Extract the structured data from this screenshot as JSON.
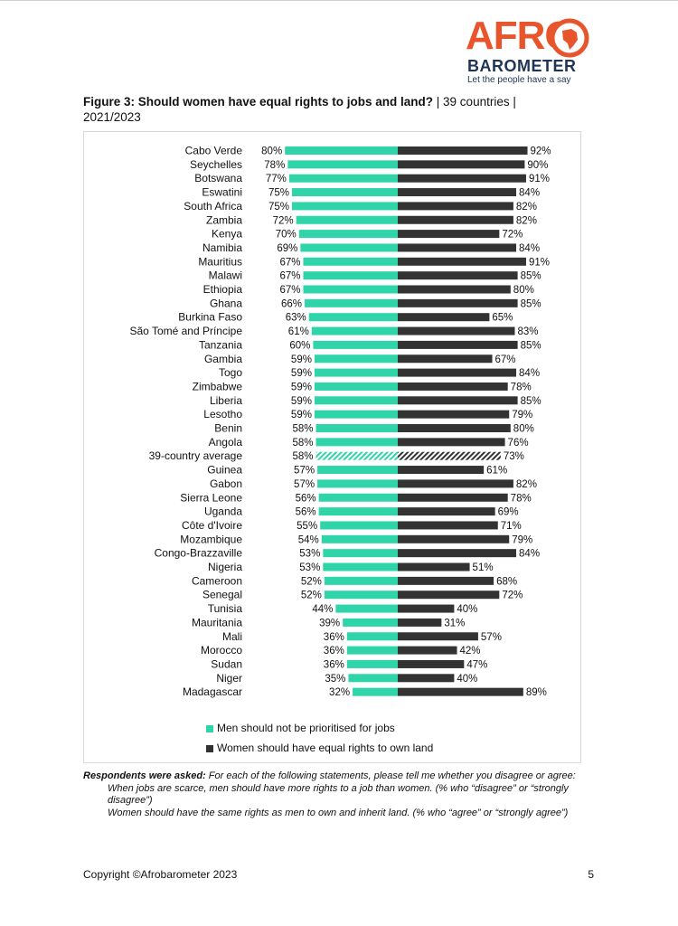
{
  "logo": {
    "word1": "AFRO",
    "word2": "BAROMETER",
    "tagline": "Let the people have a say"
  },
  "title": {
    "bold": "Figure 3: Should women have equal rights to jobs and land?",
    "rest": " | 39 countries | 2021/2023"
  },
  "colors": {
    "men": "#2fd4a8",
    "women": "#333333",
    "brand": "#e8542b",
    "navy": "#1e3556"
  },
  "chart_data": {
    "type": "bar",
    "orientation": "horizontal-diverging",
    "categories": [
      "Cabo Verde",
      "Seychelles",
      "Botswana",
      "Eswatini",
      "South Africa",
      "Zambia",
      "Kenya",
      "Namibia",
      "Mauritius",
      "Malawi",
      "Ethiopia",
      "Ghana",
      "Burkina Faso",
      "São Tomé and Príncipe",
      "Tanzania",
      "Gambia",
      "Togo",
      "Zimbabwe",
      "Liberia",
      "Lesotho",
      "Benin",
      "Angola",
      "39-country average",
      "Guinea",
      "Gabon",
      "Sierra Leone",
      "Uganda",
      "Côte d'Ivoire",
      "Mozambique",
      "Congo-Brazzaville",
      "Nigeria",
      "Cameroon",
      "Senegal",
      "Tunisia",
      "Mauritania",
      "Mali",
      "Morocco",
      "Sudan",
      "Niger",
      "Madagascar"
    ],
    "series": [
      {
        "name": "Men should not be prioritised for jobs",
        "values": [
          80,
          78,
          77,
          75,
          75,
          72,
          70,
          69,
          67,
          67,
          67,
          66,
          63,
          61,
          60,
          59,
          59,
          59,
          59,
          59,
          58,
          58,
          58,
          57,
          57,
          56,
          56,
          55,
          54,
          53,
          53,
          52,
          52,
          44,
          39,
          36,
          36,
          36,
          35,
          32
        ]
      },
      {
        "name": "Women should have equal rights to own land",
        "values": [
          92,
          90,
          91,
          84,
          82,
          82,
          72,
          84,
          91,
          85,
          80,
          85,
          65,
          83,
          85,
          67,
          84,
          78,
          85,
          79,
          80,
          76,
          73,
          61,
          82,
          78,
          69,
          71,
          79,
          84,
          51,
          68,
          72,
          40,
          31,
          57,
          42,
          47,
          40,
          89
        ]
      }
    ],
    "highlight_category": "39-country average",
    "value_suffix": "%",
    "xlim": [
      0,
      100
    ]
  },
  "notes": {
    "lead": "Respondents were asked:",
    "question": " For each of the following statements, please tell me whether you disagree or agree:",
    "item1": "When jobs are scarce, men should have more rights to a job than women. (% who “disagree” or “strongly disagree”)",
    "item2": "Women should have the same rights as men to own and inherit land. (% who “agree” or “strongly agree”)"
  },
  "footer": {
    "copyright": "Copyright ©Afrobarometer 2023",
    "page": "5"
  }
}
